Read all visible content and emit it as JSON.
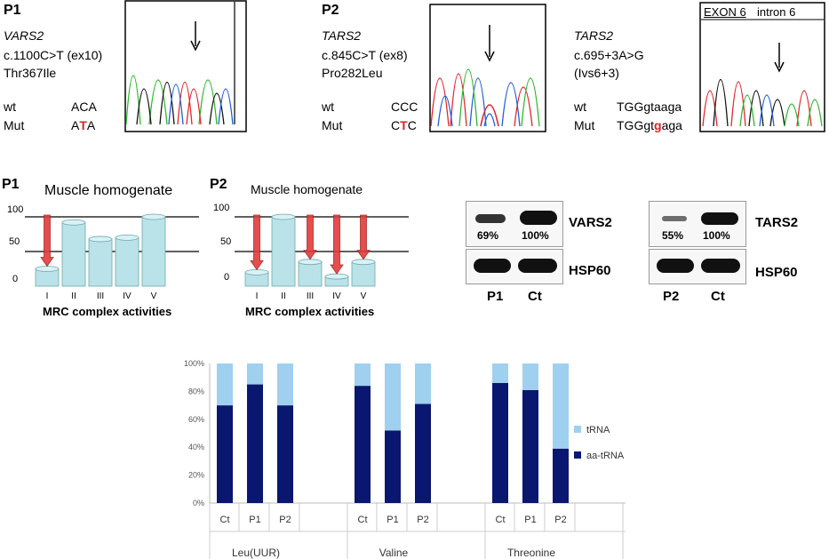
{
  "colors": {
    "trace_green": "#2db82d",
    "trace_blue": "#1f5fd8",
    "trace_black": "#111111",
    "trace_red": "#e0262a",
    "bar_light": "#9fd0ef",
    "bar_dark": "#0a1770",
    "arrow_red": "#e23b3b",
    "cylinder": "#b9e3e8"
  },
  "sequencing": [
    {
      "patient": "P1",
      "gene": "VARS2",
      "mutation": "c.1100C>T (ex10)",
      "protein": "Thr367Ile",
      "wt_label": "wt",
      "wt_seq": "ACA",
      "mut_label": "Mut",
      "mut_pre": "A",
      "mut_hl": "T",
      "mut_post": "A"
    },
    {
      "patient": "P2",
      "gene": "TARS2",
      "mutation": "c.845C>T (ex8)",
      "protein": "Pro282Leu",
      "wt_label": "wt",
      "wt_seq": "CCC",
      "mut_label": "Mut",
      "mut_pre": "C",
      "mut_hl": "T",
      "mut_post": "C"
    },
    {
      "patient": "",
      "gene": "TARS2",
      "mutation": "c.695+3A>G",
      "protein": "(Ivs6+3)",
      "wt_label": "wt",
      "wt_seq": "TGGgtaaga",
      "mut_label": "Mut",
      "mut_pre": "TGGgt",
      "mut_hl": "g",
      "mut_post": "aga",
      "exon_label": "EXON 6",
      "intron_label": "intron 6"
    }
  ],
  "muscle": [
    {
      "patient": "P1",
      "title": "Muscle homogenate",
      "xlabel": "MRC complex activities",
      "yticks": [
        "100",
        "50",
        "0"
      ],
      "complexes": [
        "I",
        "II",
        "III",
        "IV",
        "V"
      ],
      "values": [
        25,
        92,
        68,
        70,
        100
      ],
      "arrows": [
        true,
        false,
        false,
        false,
        false
      ]
    },
    {
      "patient": "P2",
      "title": "Muscle homogenate",
      "xlabel": "MRC complex activities",
      "yticks": [
        "100",
        "50",
        "0"
      ],
      "complexes": [
        "I",
        "II",
        "III",
        "IV",
        "V"
      ],
      "values": [
        20,
        100,
        35,
        14,
        35
      ],
      "arrows": [
        true,
        false,
        true,
        true,
        true
      ]
    }
  ],
  "blots": [
    {
      "protein": "VARS2",
      "loading": "HSP60",
      "pct": [
        "69%",
        "100%"
      ],
      "lanes": [
        "P1",
        "Ct"
      ]
    },
    {
      "protein": "TARS2",
      "loading": "HSP60",
      "pct": [
        "55%",
        "100%"
      ],
      "lanes": [
        "P2",
        "Ct"
      ]
    }
  ],
  "chart_data": {
    "type": "bar",
    "stacked": true,
    "groups": [
      "Leu(UUR)",
      "Valine",
      "Threonine"
    ],
    "categories": [
      "Ct",
      "P1",
      "P2"
    ],
    "yticks": [
      "0%",
      "20%",
      "40%",
      "60%",
      "80%",
      "100%"
    ],
    "ylim": [
      0,
      100
    ],
    "series": [
      {
        "name": "aa-tRNA",
        "values": [
          [
            70,
            85,
            70
          ],
          [
            84,
            52,
            71
          ],
          [
            86,
            81,
            39
          ]
        ]
      },
      {
        "name": "tRNA",
        "values": [
          [
            30,
            15,
            30
          ],
          [
            16,
            48,
            29
          ],
          [
            14,
            19,
            61
          ]
        ]
      }
    ],
    "legend": [
      "tRNA",
      "aa-tRNA"
    ]
  }
}
